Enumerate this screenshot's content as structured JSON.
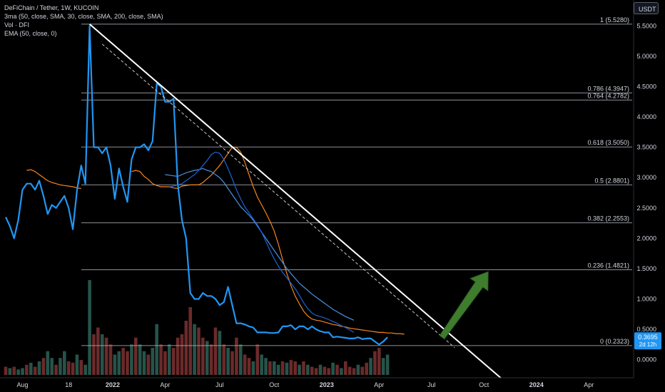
{
  "legend": {
    "symbol": "DeFiChain / Tether, 1W, KUCOIN",
    "ma_indicator": "3ma (50, close, SMA, 30, close, SMA, 200, close, SMA)",
    "volume_indicator": "Vol · DFI",
    "ema_indicator": "EMA (50, close, 0)"
  },
  "currency_button": "USDT",
  "colors": {
    "background": "#000000",
    "price_line": "#2196f3",
    "ma_dark_blue": "#1e63d6",
    "ma_light_blue": "#4a90e2",
    "ema_orange": "#f5841f",
    "fib_lines": "#b2b5be",
    "trendline": "#ffffff",
    "arrow": "#3f7d2e",
    "volume_up": "#26534a",
    "volume_down": "#6b2a2a",
    "price_label_bg": "#2196f3"
  },
  "chart_data": {
    "type": "line",
    "x_ticks": [
      "Aug",
      "18",
      "2022",
      "Apr",
      "Jul",
      "Oct",
      "2023",
      "Apr",
      "Jul",
      "Oct",
      "2024",
      "Apr"
    ],
    "y_ticks": [
      "5.5000",
      "5.0000",
      "4.5000",
      "4.0000",
      "3.5000",
      "3.0000",
      "2.5000",
      "2.0000",
      "1.5000",
      "1.0000",
      "0.5000",
      "0.0000"
    ],
    "ylim": [
      -0.25,
      5.75
    ],
    "price_label": {
      "value": "0.3695",
      "countdown": "2d 12h"
    },
    "fib_levels": [
      {
        "label": "1 (5.5280)",
        "value": 5.528
      },
      {
        "label": "0.786 (4.3947)",
        "value": 4.3947
      },
      {
        "label": "0.764 (4.2782)",
        "value": 4.2782
      },
      {
        "label": "0.618 (3.5050)",
        "value": 3.505
      },
      {
        "label": "0.5 (2.8801)",
        "value": 2.8801
      },
      {
        "label": "0.382 (2.2553)",
        "value": 2.2553
      },
      {
        "label": "0.236 (1.4821)",
        "value": 1.4821
      },
      {
        "label": "0 (0.2323)",
        "value": 0.2323
      }
    ],
    "fib_start_week": 18,
    "price_series": [
      2.35,
      2.2,
      2.0,
      2.3,
      2.8,
      2.9,
      2.9,
      2.8,
      2.95,
      2.7,
      2.4,
      2.55,
      2.5,
      2.6,
      2.7,
      2.5,
      2.15,
      2.8,
      3.2,
      2.9,
      5.5,
      3.5,
      3.5,
      3.4,
      3.5,
      3.2,
      2.65,
      3.15,
      2.85,
      2.6,
      3.3,
      3.5,
      3.5,
      3.55,
      3.45,
      3.6,
      4.55,
      4.5,
      4.25,
      4.25,
      4.3,
      2.9,
      2.3,
      2.0,
      1.1,
      1.0,
      1.0,
      1.1,
      1.05,
      1.05,
      1.0,
      0.9,
      0.95,
      1.2,
      0.9,
      0.6,
      0.6,
      0.58,
      0.55,
      0.53,
      0.45,
      0.45,
      0.45,
      0.44,
      0.44,
      0.45,
      0.55,
      0.55,
      0.57,
      0.5,
      0.55,
      0.55,
      0.5,
      0.55,
      0.5,
      0.47,
      0.45,
      0.45,
      0.37,
      0.38,
      0.37,
      0.36,
      0.35,
      0.35,
      0.37,
      0.34,
      0.35,
      0.35,
      0.3,
      0.25,
      0.3,
      0.37
    ],
    "ema_series": [
      3.1,
      3.12,
      3.1,
      3.02,
      2.97,
      2.9,
      2.87,
      2.85,
      2.85,
      2.85,
      2.83,
      2.82,
      2.86,
      2.87,
      2.88,
      2.88,
      2.88,
      2.92,
      2.98,
      3.04,
      3.12,
      3.2,
      3.3,
      3.4,
      3.5,
      3.5,
      3.42,
      3.25,
      3.05,
      2.85,
      2.68,
      2.55,
      2.42,
      2.28,
      2.12,
      1.9,
      1.65,
      1.42,
      1.22,
      1.05,
      0.92,
      0.8,
      0.72,
      0.67,
      0.65,
      0.64,
      0.62,
      0.6,
      0.58,
      0.57,
      0.55,
      0.54,
      0.52,
      0.51,
      0.5,
      0.49,
      0.48,
      0.47,
      0.46,
      0.45,
      0.45,
      0.44,
      0.44,
      0.43,
      0.43,
      0.42
    ],
    "ema_start_week": 30,
    "ema_early": [
      3.12,
      3.13,
      3.1,
      3.05,
      3.0,
      2.95,
      2.92,
      2.9,
      2.88,
      2.87,
      2.86,
      2.85,
      2.83,
      2.82
    ],
    "ma_dark_blue_series": [
      2.85,
      2.86,
      2.88,
      2.9,
      2.95,
      3.0,
      3.05,
      3.12,
      3.2,
      3.28,
      3.38,
      3.42,
      3.4,
      3.3,
      3.15,
      2.98,
      2.8,
      2.65,
      2.52,
      2.42,
      2.32,
      2.22,
      2.1,
      1.95,
      1.8,
      1.66,
      1.54,
      1.44,
      1.35,
      1.26,
      1.17,
      1.06,
      0.94,
      0.84,
      0.77,
      0.73,
      0.71,
      0.69,
      0.66,
      0.63,
      0.6,
      0.56,
      0.53,
      0.49,
      0.45
    ],
    "ma_dark_blue_start_week": 39,
    "ma_light_blue_series": [
      3.05,
      3.04,
      3.03,
      3.02,
      3.05,
      3.08,
      3.1,
      3.12,
      3.13,
      3.15,
      3.12,
      3.1,
      3.05,
      3.0,
      2.92,
      2.82,
      2.72,
      2.62,
      2.52,
      2.45,
      2.38,
      2.3,
      2.2,
      2.1,
      2.0,
      1.9,
      1.8,
      1.7,
      1.6,
      1.5,
      1.42,
      1.34,
      1.26,
      1.2,
      1.14,
      1.08,
      1.03,
      0.98,
      0.93,
      0.88,
      0.83,
      0.79,
      0.75,
      0.71,
      0.68,
      0.65
    ],
    "ma_light_blue_start_week": 38,
    "volume": [
      0.12,
      0.1,
      0.12,
      0.08,
      0.1,
      0.15,
      0.18,
      0.12,
      0.2,
      0.25,
      0.35,
      0.25,
      0.15,
      0.25,
      0.35,
      0.2,
      0.18,
      0.3,
      0.22,
      0.15,
      1.4,
      0.6,
      0.7,
      0.6,
      0.55,
      0.45,
      0.3,
      0.35,
      0.4,
      0.35,
      0.45,
      0.55,
      0.45,
      0.35,
      0.3,
      0.4,
      0.75,
      0.45,
      0.35,
      0.45,
      0.4,
      0.55,
      0.6,
      0.8,
      1.0,
      0.75,
      0.7,
      0.55,
      0.5,
      0.45,
      0.7,
      0.65,
      0.45,
      0.4,
      0.35,
      0.55,
      0.45,
      0.3,
      0.25,
      0.2,
      0.45,
      0.3,
      0.25,
      0.2,
      0.2,
      0.15,
      0.2,
      0.18,
      0.22,
      0.2,
      0.15,
      0.2,
      0.15,
      0.12,
      0.1,
      0.15,
      0.12,
      0.1,
      0.18,
      0.15,
      0.1,
      0.2,
      0.12,
      0.1,
      0.15,
      0.12,
      0.18,
      0.25,
      0.35,
      0.4,
      0.25,
      0.3
    ],
    "volume_up": [
      0,
      1,
      0,
      1,
      1,
      0,
      1,
      0,
      1,
      0,
      1,
      1,
      0,
      1,
      1,
      0,
      0,
      1,
      0,
      1,
      1,
      0,
      0,
      1,
      0,
      0,
      1,
      1,
      0,
      0,
      1,
      0,
      1,
      1,
      0,
      1,
      1,
      0,
      0,
      1,
      0,
      0,
      0,
      0,
      0,
      1,
      0,
      0,
      1,
      0,
      0,
      1,
      0,
      1,
      0,
      0,
      1,
      0,
      0,
      1,
      0,
      1,
      1,
      0,
      1,
      1,
      0,
      1,
      0,
      0,
      1,
      0,
      1,
      0,
      0,
      1,
      0,
      0,
      1,
      0,
      1,
      0,
      0,
      0,
      1,
      0,
      0,
      1,
      0,
      0,
      1,
      1
    ],
    "trendline": {
      "from": {
        "week": 20,
        "value": 5.528
      },
      "to": {
        "week": 118,
        "value": -0.3
      }
    },
    "dashed_trendline": {
      "from": {
        "week": 23,
        "value": 5.2
      },
      "to": {
        "week": 107,
        "value": 0.2
      }
    },
    "arrow": {
      "from": {
        "week": 104,
        "value": 0.37
      },
      "to": {
        "week": 115,
        "value": 1.45
      }
    }
  }
}
